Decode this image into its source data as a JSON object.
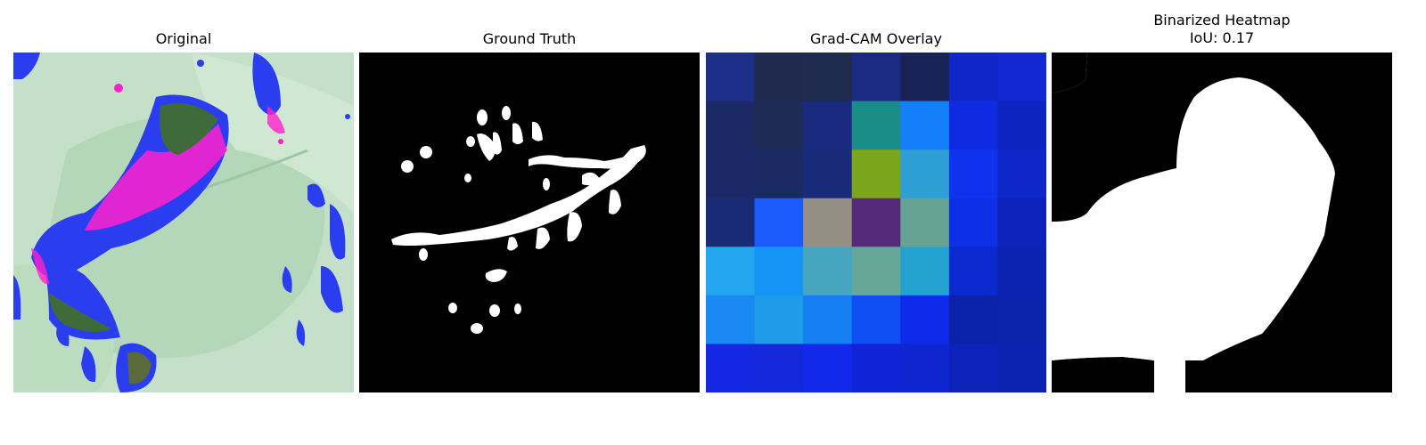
{
  "panels": [
    {
      "title": "Original"
    },
    {
      "title": "Ground Truth"
    },
    {
      "title": "Grad-CAM Overlay"
    },
    {
      "title_line1": "Binarized Heatmap",
      "title_line2": "IoU: 0.17"
    }
  ],
  "gradcam": {
    "grid_size": [
      7,
      7
    ],
    "cell_colors": [
      [
        "#1e2f8a",
        "#1f2a4d",
        "#1f2b4f",
        "#1b2a83",
        "#192456",
        "#0f27c9",
        "#1128d3"
      ],
      [
        "#1b2a65",
        "#1d2b55",
        "#192a7f",
        "#1a8c88",
        "#137ff8",
        "#0f2ae0",
        "#0d25c0"
      ],
      [
        "#1b2a66",
        "#1b2a62",
        "#192a7a",
        "#7ba61b",
        "#2e9fd4",
        "#0f32ee",
        "#0f27c9"
      ],
      [
        "#1b2a74",
        "#1a5cfb",
        "#958e84",
        "#542a7a",
        "#66a392",
        "#0d2fe6",
        "#0c22b8"
      ],
      [
        "#22a6ee",
        "#1596f6",
        "#46a6bf",
        "#66a79a",
        "#23a1cf",
        "#0b29cf",
        "#0c22b0"
      ],
      [
        "#1b89f3",
        "#1e9be9",
        "#157ef3",
        "#0f4ef0",
        "#0d2be8",
        "#0c22a8",
        "#0c23ac"
      ],
      [
        "#1428e3",
        "#1228da",
        "#1229ea",
        "#0f25d5",
        "#0f25cf",
        "#0c22b8",
        "#0c22b0"
      ]
    ]
  },
  "colors": {
    "background": "#ffffff",
    "mask_fg": "#ffffff",
    "mask_bg": "#000000",
    "leaf_light": "#c9e3cc",
    "leaf_mid": "#a9d2b0",
    "lesion_blue": "#2a3ef0",
    "lesion_magenta": "#ff22cc",
    "lesion_green": "#3f6b3a"
  }
}
